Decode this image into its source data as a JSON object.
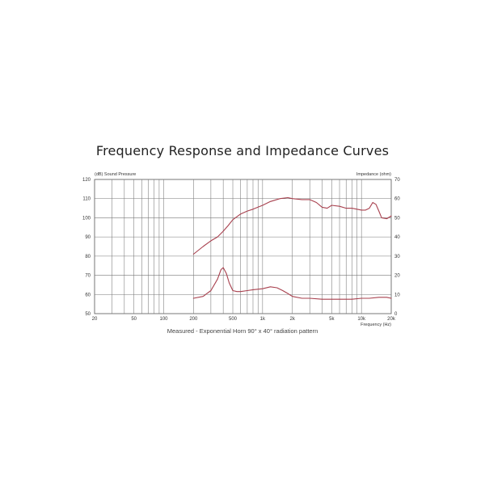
{
  "chart_data": {
    "type": "line",
    "title": "Frequency Response and Impedance Curves",
    "caption": "Measured - Exponential Horn 90° x 40° radiation pattern",
    "left_axis_label": "(dB) Sound Pressure",
    "right_axis_label": "Impedance (ohm)",
    "x_axis_label": "Frequency (Hz)",
    "x_scale": "log",
    "xlim": [
      20,
      20000
    ],
    "ylim_left": [
      50,
      120
    ],
    "ylim_right": [
      0,
      70
    ],
    "x_ticks": [
      {
        "v": 20,
        "label": "20"
      },
      {
        "v": 50,
        "label": "50"
      },
      {
        "v": 100,
        "label": "100"
      },
      {
        "v": 200,
        "label": "200"
      },
      {
        "v": 500,
        "label": "500"
      },
      {
        "v": 1000,
        "label": "1k"
      },
      {
        "v": 2000,
        "label": "2k"
      },
      {
        "v": 5000,
        "label": "5k"
      },
      {
        "v": 10000,
        "label": "10k"
      },
      {
        "v": 20000,
        "label": "20k"
      }
    ],
    "left_ticks": [
      120,
      110,
      100,
      90,
      80,
      70,
      60,
      50
    ],
    "right_ticks": [
      70,
      60,
      50,
      40,
      30,
      20,
      10,
      0
    ],
    "grid": true,
    "line_color": "#a8404e",
    "series": [
      {
        "axis": "left",
        "x": [
          200,
          250,
          300,
          350,
          400,
          450,
          500,
          600,
          700,
          800,
          1000,
          1200,
          1500,
          1800,
          2000,
          2500,
          3000,
          3500,
          4000,
          4500,
          5000,
          6000,
          7000,
          8000,
          9000,
          10000,
          11000,
          12000,
          13000,
          14000,
          15000,
          16000,
          18000,
          20000
        ],
        "y": [
          81,
          85,
          88,
          90,
          93,
          96,
          99,
          102,
          103.5,
          104.5,
          106.5,
          108.5,
          110,
          110.5,
          110,
          109.5,
          109.5,
          108,
          105.5,
          105,
          106.5,
          106,
          105,
          105,
          104.5,
          104,
          104,
          105,
          108,
          107,
          103.5,
          100,
          99.5,
          101
        ]
      },
      {
        "axis": "right",
        "x": [
          200,
          250,
          300,
          350,
          380,
          400,
          430,
          460,
          500,
          550,
          600,
          700,
          800,
          1000,
          1200,
          1400,
          1600,
          1800,
          2000,
          2500,
          3000,
          4000,
          5000,
          6000,
          8000,
          10000,
          12000,
          15000,
          18000,
          20000
        ],
        "y": [
          8,
          9,
          12,
          18,
          23,
          24,
          21,
          16,
          12,
          11.5,
          11.5,
          12,
          12.5,
          13,
          14,
          13.5,
          12,
          10.5,
          9,
          8,
          8,
          7.5,
          7.5,
          7.5,
          7.5,
          8,
          8,
          8.5,
          8.5,
          8
        ]
      }
    ]
  }
}
